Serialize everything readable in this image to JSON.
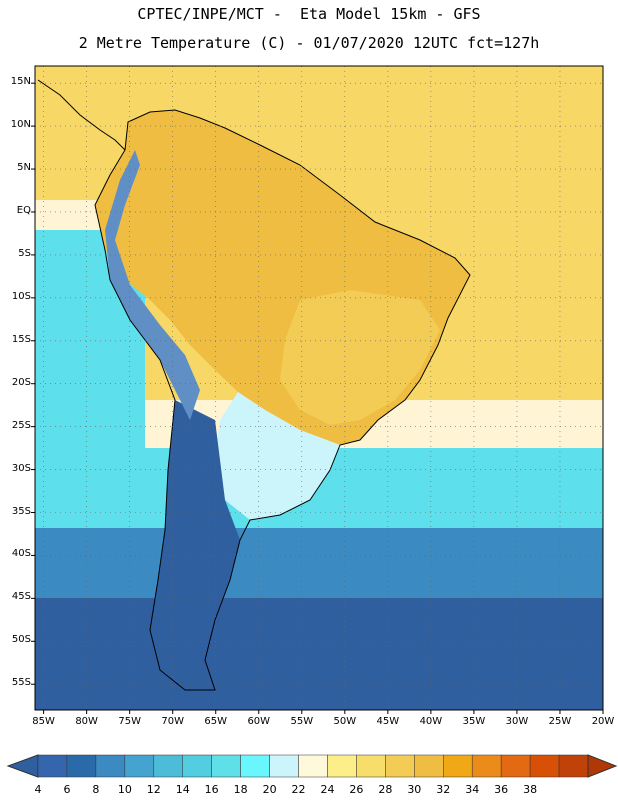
{
  "title": {
    "line1": "CPTEC/INPE/MCT -  Eta Model 15km - GFS",
    "line2": "2 Metre Temperature (C) - 01/07/2020 12UTC fct=127h"
  },
  "axes": {
    "lat_labels": [
      "15N",
      "10N",
      "5N",
      "EQ",
      "5S",
      "10S",
      "15S",
      "20S",
      "25S",
      "30S",
      "35S",
      "40S",
      "45S",
      "50S",
      "55S"
    ],
    "lon_labels": [
      "85W",
      "80W",
      "75W",
      "70W",
      "65W",
      "60W",
      "55W",
      "50W",
      "45W",
      "40W",
      "35W",
      "30W",
      "25W",
      "20W"
    ],
    "lat_range": [
      17,
      -58
    ],
    "lon_range": [
      -86,
      -20
    ],
    "grid": "dotted"
  },
  "colorbar": {
    "labels": [
      "4",
      "6",
      "8",
      "10",
      "12",
      "14",
      "16",
      "18",
      "20",
      "22",
      "24",
      "26",
      "28",
      "30",
      "32",
      "34",
      "36",
      "38"
    ],
    "colors": [
      "#3565ad",
      "#2a6aa9",
      "#3b8bc2",
      "#45a3cf",
      "#4cbcd9",
      "#53cde0",
      "#5fdfe8",
      "#6af6ff",
      "#ccf4fb",
      "#fff9dc",
      "#fcef8a",
      "#f7dd69",
      "#f3cc55",
      "#efbd42",
      "#f0a816",
      "#eb8c1a",
      "#e36a12",
      "#d85006",
      "#c04208"
    ],
    "low_color": "#2f5f9f",
    "high_color": "#b03806"
  },
  "field_colors": {
    "ocean_tropical": "#f7d866",
    "ocean_subtropical": "#fff5d5",
    "ocean_cool": "#5ee0ec",
    "ocean_cold": "#3b8bc2",
    "ocean_polar": "#2f5f9f",
    "land_hot": "#efbd42",
    "land_warm": "#f3cc55",
    "land_mild": "#ccf4fb",
    "land_andes": "#5f8fc5",
    "land_cold": "#2f5f9f",
    "coastline": "#000000"
  }
}
